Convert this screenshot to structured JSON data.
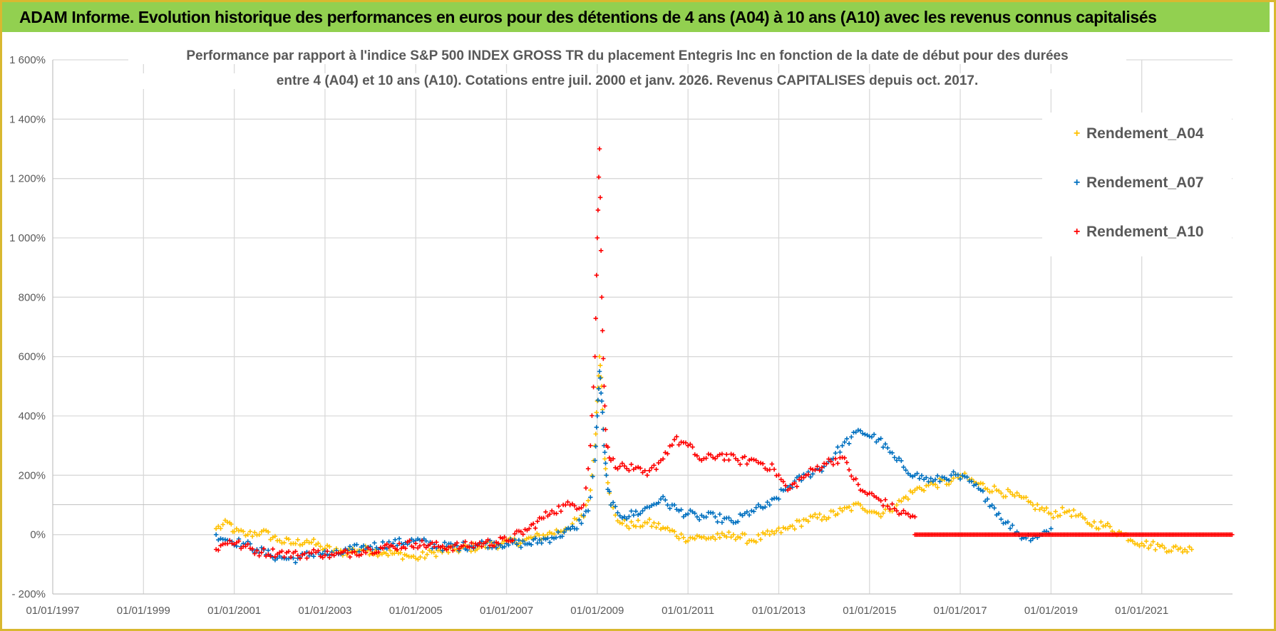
{
  "header": {
    "banner": "ADAM Informe. Evolution historique des performances en euros pour des détentions de 4 ans (A04) à 10 ans (A10) avec les revenus connus capitalisés"
  },
  "chart_data": {
    "type": "scatter",
    "title_line1": "Performance par rapport à l'indice S&P 500 INDEX GROSS TR  du placement Entegris Inc en fonction de la date de début pour des durées",
    "title_line2": "entre 4 (A04) et 10 ans (A10).  Cotations entre juil. 2000 et janv. 2026. Revenus CAPITALISES depuis oct. 2017.",
    "x_ticks": [
      "01/01/1997",
      "01/01/1999",
      "01/01/2001",
      "01/01/2003",
      "01/01/2005",
      "01/01/2007",
      "01/01/2009",
      "01/01/2011",
      "01/01/2013",
      "01/01/2015",
      "01/01/2017",
      "01/01/2019",
      "01/01/2021"
    ],
    "xlim": [
      1997.0,
      2023.0
    ],
    "y_ticks": [
      "- 200%",
      "0%",
      "200%",
      "400%",
      "600%",
      "800%",
      "1 000%",
      "1 200%",
      "1 400%",
      "1 600%"
    ],
    "ylim": [
      -200,
      1600
    ],
    "grid": true,
    "legend_position": "top-right",
    "series": [
      {
        "name": "Rendement_A04",
        "color": "#ffc000",
        "x": [
          2000.6,
          2000.9,
          2001.0,
          2001.3,
          2001.6,
          2002.0,
          2002.3,
          2002.6,
          2002.9,
          2003.3,
          2003.8,
          2004.3,
          2004.8,
          2005.0,
          2005.4,
          2005.9,
          2006.4,
          2006.9,
          2007.4,
          2007.9,
          2008.3,
          2008.7,
          2008.85,
          2008.95,
          2009.0,
          2009.05,
          2009.1,
          2009.15,
          2009.2,
          2009.3,
          2009.5,
          2009.8,
          2010.1,
          2010.5,
          2010.9,
          2011.3,
          2011.7,
          2012.0,
          2012.4,
          2012.8,
          2013.2,
          2013.6,
          2014.0,
          2014.4,
          2014.8,
          2015.2,
          2015.6,
          2016.0,
          2016.4,
          2016.8,
          2017.0,
          2017.4,
          2017.8,
          2018.2,
          2018.6,
          2019.0,
          2019.4,
          2019.8,
          2020.2,
          2020.6,
          2021.0,
          2021.4,
          2021.8,
          2022.1
        ],
        "y": [
          20,
          40,
          10,
          0,
          10,
          -20,
          -30,
          -20,
          -40,
          -60,
          -50,
          -60,
          -70,
          -80,
          -60,
          -50,
          -40,
          -30,
          -20,
          0,
          20,
          60,
          150,
          300,
          450,
          600,
          500,
          300,
          200,
          100,
          40,
          30,
          40,
          20,
          -10,
          -10,
          -10,
          0,
          -20,
          0,
          20,
          50,
          60,
          80,
          100,
          70,
          100,
          150,
          170,
          180,
          200,
          170,
          150,
          130,
          100,
          70,
          80,
          40,
          30,
          0,
          -30,
          -40,
          -50,
          -50
        ]
      },
      {
        "name": "Rendement_A07",
        "color": "#0070c0",
        "x": [
          2000.6,
          2000.9,
          2001.2,
          2001.5,
          2001.8,
          2002.1,
          2002.4,
          2002.8,
          2003.2,
          2003.6,
          2004.0,
          2004.5,
          2005.0,
          2005.5,
          2006.0,
          2006.5,
          2007.0,
          2007.5,
          2008.0,
          2008.5,
          2008.8,
          2008.95,
          2009.0,
          2009.05,
          2009.1,
          2009.15,
          2009.2,
          2009.3,
          2009.6,
          2010.0,
          2010.4,
          2010.8,
          2011.2,
          2011.6,
          2012.0,
          2012.4,
          2012.8,
          2013.2,
          2013.6,
          2014.0,
          2014.4,
          2014.8,
          2015.2,
          2015.6,
          2016.0,
          2016.4,
          2016.8,
          2017.2,
          2017.6,
          2018.0,
          2018.4,
          2018.8,
          2019.0
        ],
        "y": [
          0,
          -20,
          -30,
          -50,
          -70,
          -80,
          -80,
          -60,
          -70,
          -50,
          -40,
          -30,
          -20,
          -40,
          -40,
          -30,
          -30,
          -30,
          -10,
          20,
          80,
          250,
          400,
          550,
          450,
          300,
          200,
          100,
          60,
          80,
          120,
          80,
          60,
          60,
          40,
          80,
          100,
          160,
          200,
          230,
          300,
          350,
          320,
          250,
          200,
          180,
          200,
          180,
          120,
          40,
          -10,
          0,
          20
        ]
      },
      {
        "name": "Rendement_A10",
        "color": "#ff0000",
        "x": [
          2000.6,
          2000.9,
          2001.2,
          2001.6,
          2002.0,
          2002.4,
          2002.8,
          2003.2,
          2003.6,
          2004.0,
          2004.5,
          2005.0,
          2005.5,
          2006.0,
          2006.5,
          2007.0,
          2007.5,
          2008.0,
          2008.4,
          2008.7,
          2008.85,
          2008.95,
          2009.0,
          2009.05,
          2009.1,
          2009.15,
          2009.2,
          2009.3,
          2009.5,
          2009.8,
          2010.1,
          2010.4,
          2010.7,
          2011.0,
          2011.3,
          2011.7,
          2012.1,
          2012.5,
          2012.9,
          2013.2,
          2013.6,
          2014.0,
          2014.4,
          2014.8,
          2015.2,
          2015.6,
          2016.0
        ],
        "y": [
          -50,
          -20,
          -40,
          -60,
          -60,
          -70,
          -60,
          -70,
          -60,
          -50,
          -40,
          -30,
          -40,
          -40,
          -30,
          -20,
          20,
          80,
          100,
          100,
          300,
          600,
          1000,
          1300,
          800,
          500,
          300,
          250,
          230,
          220,
          200,
          250,
          320,
          300,
          250,
          270,
          250,
          250,
          220,
          150,
          200,
          240,
          260,
          150,
          120,
          80,
          60
        ]
      }
    ],
    "flat_zero_range": [
      2016.0,
      2023.0
    ]
  },
  "legend": {
    "items": [
      "Rendement_A04",
      "Rendement_A07",
      "Rendement_A10"
    ]
  }
}
